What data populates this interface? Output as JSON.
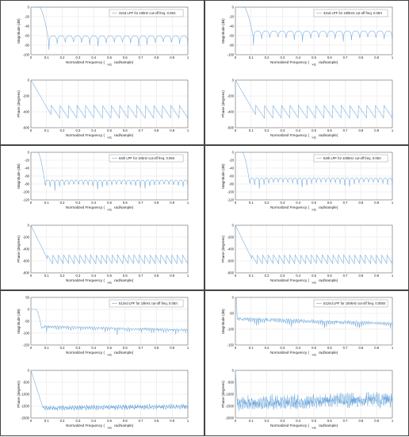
{
  "colors": {
    "line": "#6fa8dc",
    "grid": "#d9d9d9",
    "axis": "#555555",
    "border": "#444444"
  },
  "xticks": [
    "0",
    "0.1",
    "0.2",
    "0.3",
    "0.4",
    "0.5",
    "0.6",
    "0.7",
    "0.8",
    "0.9",
    "1"
  ],
  "labels": {
    "xlabel_left": "Normalized Frequency  (",
    "xlabel_pi": "×π",
    "xlabel_right": "rad/sample)",
    "ylabel_mag": "Magnitude (dB)",
    "ylabel_phase": "Phase (degrees)"
  },
  "chart_data": [
    {
      "type": "line",
      "legend": "32nd LPF for 10kHz cut-off freq. 0.05π",
      "mag_ylim": [
        -100,
        0
      ],
      "mag_yticks": [
        "0",
        "-20",
        "-40",
        "-60",
        "-80",
        "-100"
      ],
      "phase_ylim": [
        -600,
        0
      ],
      "phase_yticks": [
        "0",
        "-200",
        "-400",
        "-600"
      ],
      "cutoff": 0.1,
      "passband_ripple_floor": -50,
      "phase_wrap": [
        -300,
        -480
      ],
      "phase_drop_to": -440,
      "teeth": 16,
      "stop_lobes": 17,
      "noise": false
    },
    {
      "type": "line",
      "legend": "32nd LPF for 100kHz cut-off freq. 0.05π",
      "mag_ylim": [
        -100,
        0
      ],
      "mag_yticks": [
        "0",
        "-20",
        "-40",
        "-60",
        "-80",
        "-100"
      ],
      "phase_ylim": [
        -600,
        0
      ],
      "phase_yticks": [
        "0",
        "-200",
        "-400",
        "-600"
      ],
      "cutoff": 0.1,
      "passband_ripple_floor": -40,
      "phase_wrap": [
        -300,
        -480
      ],
      "phase_drop_to": -440,
      "teeth": 16,
      "stop_lobes": 17,
      "noise": false
    },
    {
      "type": "line",
      "legend": "64th LPF for 10kHz cut-off freq. 0.05π",
      "mag_ylim": [
        -120,
        0
      ],
      "mag_yticks": [
        "0",
        "-20",
        "-40",
        "-60",
        "-80",
        "-100",
        "-120"
      ],
      "phase_ylim": [
        -800,
        0
      ],
      "phase_yticks": [
        "0",
        "-200",
        "-400",
        "-600",
        "-800"
      ],
      "cutoff": 0.08,
      "passband_ripple_floor": -60,
      "phase_wrap": [
        -480,
        -650
      ],
      "phase_drop_to": -560,
      "teeth": 26,
      "stop_lobes": 30,
      "noise": false
    },
    {
      "type": "line",
      "legend": "64th LPF for 100kHz cut-off freq. 0.05π",
      "mag_ylim": [
        -120,
        0
      ],
      "mag_yticks": [
        "0",
        "-20",
        "-40",
        "-60",
        "-80",
        "-100",
        "-120"
      ],
      "phase_ylim": [
        -800,
        0
      ],
      "phase_yticks": [
        "0",
        "-200",
        "-400",
        "-600",
        "-800"
      ],
      "cutoff": 0.08,
      "passband_ripple_floor": -55,
      "phase_wrap": [
        -480,
        -650
      ],
      "phase_drop_to": -560,
      "teeth": 26,
      "stop_lobes": 30,
      "noise": false
    },
    {
      "type": "line",
      "legend": "512nd LPF for 10kHz cut-off freq. 0.05π",
      "mag_ylim": [
        -150,
        50
      ],
      "mag_yticks": [
        "50",
        "0",
        "-50",
        "-100",
        "-150"
      ],
      "phase_ylim": [
        -2000,
        0
      ],
      "phase_yticks": [
        "0",
        "-500",
        "-1000",
        "-1500",
        "-2000"
      ],
      "cutoff": 0.06,
      "passband_ripple_floor": -60,
      "phase_wrap": [
        -1500,
        -1650
      ],
      "phase_drop_to": -1600,
      "teeth": 60,
      "stop_lobes": 60,
      "noise": true
    },
    {
      "type": "line",
      "legend": "512nd LPF for 100kHz cut-off freq. 0.005π",
      "mag_ylim": [
        -150,
        0
      ],
      "mag_yticks": [
        "0",
        "-50",
        "-100",
        "-150"
      ],
      "phase_ylim": [
        -2000,
        0
      ],
      "phase_yticks": [
        "0",
        "-500",
        "-1000",
        "-1500",
        "-2000"
      ],
      "cutoff": 0.01,
      "passband_ripple_floor": -55,
      "phase_wrap": [
        -1150,
        -1600
      ],
      "phase_drop_to": -1500,
      "teeth": 90,
      "stop_lobes": 80,
      "noise": true
    }
  ]
}
